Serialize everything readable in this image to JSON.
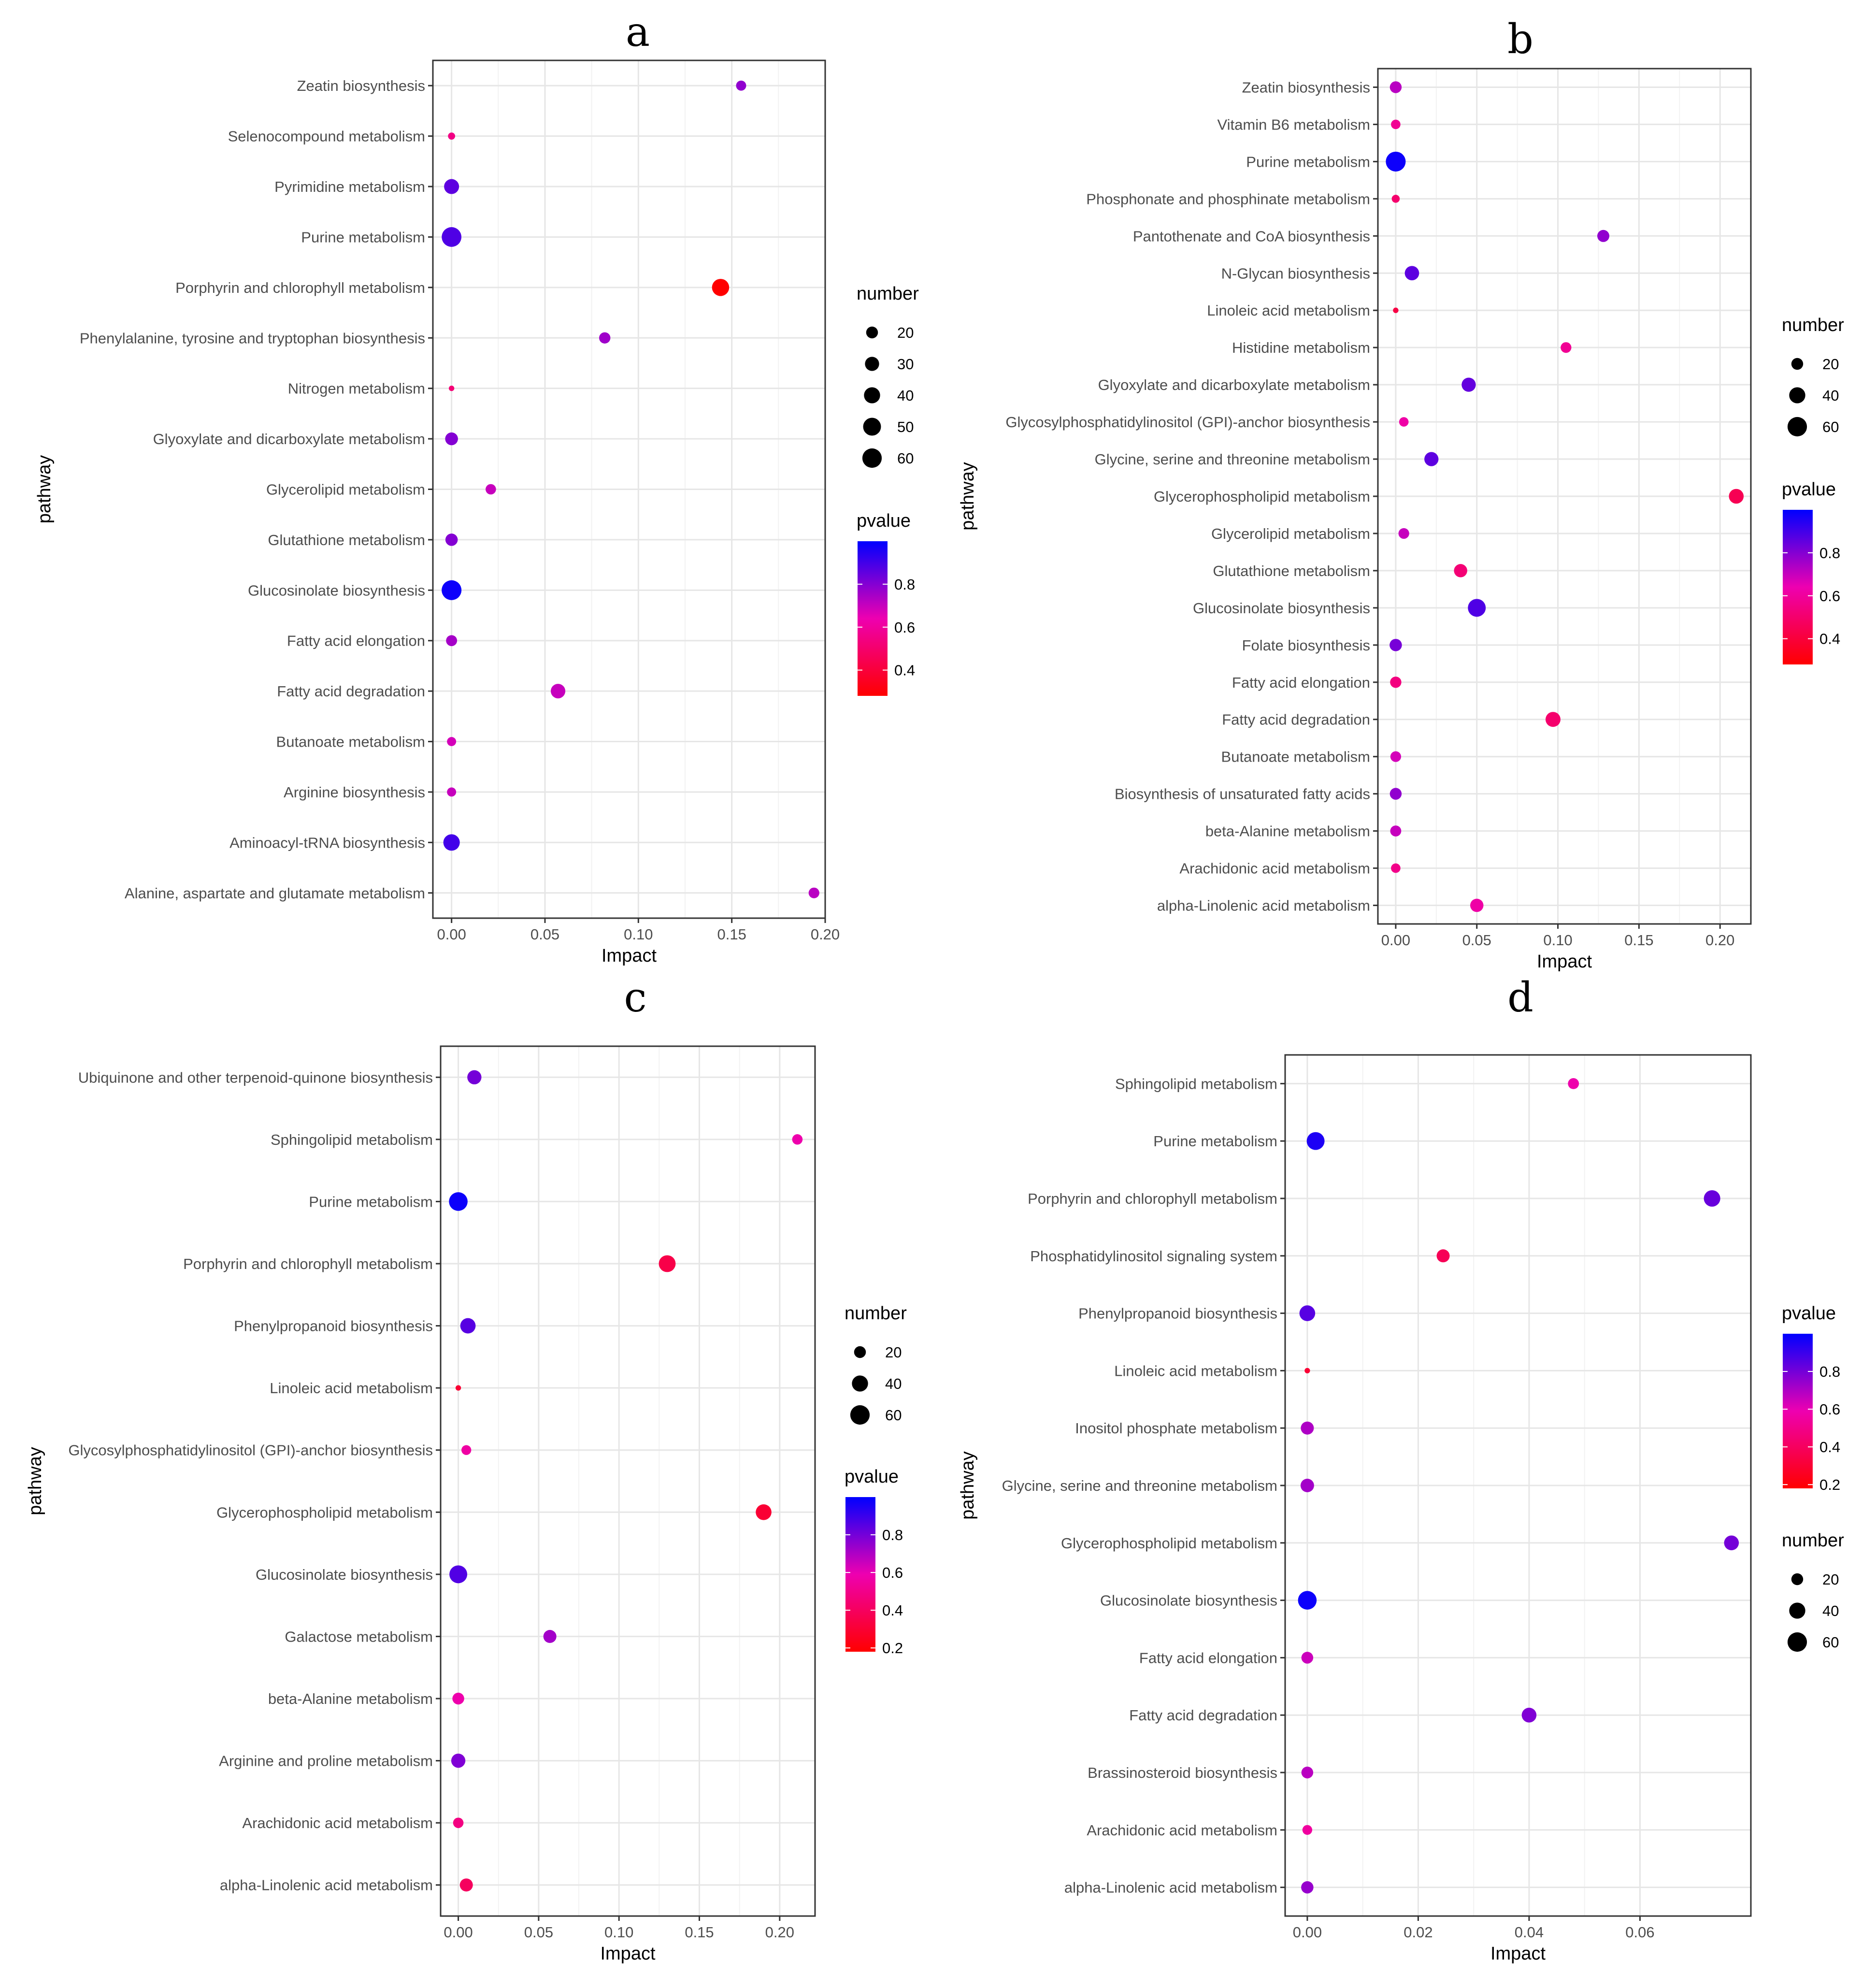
{
  "chart_data": [
    {
      "type": "scatter",
      "panel_label": "a",
      "title": "",
      "xlabel": "Impact",
      "ylabel": "pathway",
      "xlim": [
        -0.01,
        0.2
      ],
      "xticks": [
        0.0,
        0.05,
        0.1,
        0.15,
        0.2
      ],
      "xtick_labels": [
        "0.00",
        "0.05",
        "0.10",
        "0.15",
        "0.20"
      ],
      "size_legend": {
        "title": "number",
        "values": [
          20,
          30,
          40,
          50,
          60
        ],
        "labels": [
          "20",
          "30",
          "40",
          "50",
          "60"
        ]
      },
      "color_legend": {
        "title": "pvalue",
        "range": [
          0.28,
          1.0
        ],
        "ticks": [
          0.4,
          0.6,
          0.8
        ],
        "labels": [
          "0.4",
          "0.6",
          "0.8"
        ]
      },
      "legend_order": [
        "number",
        "pvalue"
      ],
      "points": [
        {
          "pathway": "Zeatin biosynthesis",
          "impact": 0.155,
          "number": 14,
          "pvalue": 0.78
        },
        {
          "pathway": "Selenocompound metabolism",
          "impact": 0.0,
          "number": 6,
          "pvalue": 0.55
        },
        {
          "pathway": "Pyrimidine metabolism",
          "impact": 0.0,
          "number": 34,
          "pvalue": 0.86
        },
        {
          "pathway": "Purine metabolism",
          "impact": 0.0,
          "number": 62,
          "pvalue": 0.88
        },
        {
          "pathway": "Porphyrin and chlorophyll metabolism",
          "impact": 0.144,
          "number": 46,
          "pvalue": 0.28
        },
        {
          "pathway": "Phenylalanine, tyrosine and tryptophan biosynthesis",
          "impact": 0.082,
          "number": 18,
          "pvalue": 0.76
        },
        {
          "pathway": "Nitrogen metabolism",
          "impact": 0.0,
          "number": 3,
          "pvalue": 0.52
        },
        {
          "pathway": "Glyoxylate and dicarboxylate metabolism",
          "impact": 0.0,
          "number": 24,
          "pvalue": 0.8
        },
        {
          "pathway": "Glycerolipid metabolism",
          "impact": 0.021,
          "number": 15,
          "pvalue": 0.7
        },
        {
          "pathway": "Glutathione metabolism",
          "impact": 0.0,
          "number": 22,
          "pvalue": 0.8
        },
        {
          "pathway": "Glucosinolate biosynthesis",
          "impact": 0.0,
          "number": 63,
          "pvalue": 0.98
        },
        {
          "pathway": "Fatty acid elongation",
          "impact": 0.0,
          "number": 17,
          "pvalue": 0.75
        },
        {
          "pathway": "Fatty acid degradation",
          "impact": 0.057,
          "number": 32,
          "pvalue": 0.7
        },
        {
          "pathway": "Butanoate metabolism",
          "impact": 0.0,
          "number": 11,
          "pvalue": 0.68
        },
        {
          "pathway": "Arginine biosynthesis",
          "impact": 0.0,
          "number": 11,
          "pvalue": 0.7
        },
        {
          "pathway": "Aminoacyl-tRNA biosynthesis",
          "impact": 0.0,
          "number": 42,
          "pvalue": 0.9
        },
        {
          "pathway": "Alanine, aspartate and glutamate metabolism",
          "impact": 0.194,
          "number": 16,
          "pvalue": 0.72
        }
      ]
    },
    {
      "type": "scatter",
      "panel_label": "b",
      "title": "",
      "xlabel": "Impact",
      "ylabel": "pathway",
      "xlim": [
        -0.011,
        0.219
      ],
      "xticks": [
        0.0,
        0.05,
        0.1,
        0.15,
        0.2
      ],
      "xtick_labels": [
        "0.00",
        "0.05",
        "0.10",
        "0.15",
        "0.20"
      ],
      "size_legend": {
        "title": "number",
        "values": [
          20,
          40,
          60
        ],
        "labels": [
          "20",
          "40",
          "60"
        ]
      },
      "color_legend": {
        "title": "pvalue",
        "range": [
          0.28,
          1.0
        ],
        "ticks": [
          0.4,
          0.6,
          0.8
        ],
        "labels": [
          "0.4",
          "0.6",
          "0.8"
        ]
      },
      "legend_order": [
        "number",
        "pvalue"
      ],
      "points": [
        {
          "pathway": "Zeatin biosynthesis",
          "impact": 0.0,
          "number": 20,
          "pvalue": 0.72
        },
        {
          "pathway": "Vitamin B6 metabolism",
          "impact": 0.0,
          "number": 12,
          "pvalue": 0.58
        },
        {
          "pathway": "Purine metabolism",
          "impact": 0.0,
          "number": 63,
          "pvalue": 0.98
        },
        {
          "pathway": "Phosphonate and phosphinate metabolism",
          "impact": 0.0,
          "number": 8,
          "pvalue": 0.5
        },
        {
          "pathway": "Pantothenate and CoA biosynthesis",
          "impact": 0.128,
          "number": 21,
          "pvalue": 0.78
        },
        {
          "pathway": "N-Glycan biosynthesis",
          "impact": 0.01,
          "number": 31,
          "pvalue": 0.86
        },
        {
          "pathway": "Linoleic acid metabolism",
          "impact": 0.0,
          "number": 3,
          "pvalue": 0.42
        },
        {
          "pathway": "Histidine metabolism",
          "impact": 0.105,
          "number": 16,
          "pvalue": 0.58
        },
        {
          "pathway": "Glyoxylate and dicarboxylate metabolism",
          "impact": 0.045,
          "number": 30,
          "pvalue": 0.85
        },
        {
          "pathway": "Glycosylphosphatidylinositol (GPI)-anchor biosynthesis",
          "impact": 0.005,
          "number": 12,
          "pvalue": 0.62
        },
        {
          "pathway": "Glycine, serine and threonine metabolism",
          "impact": 0.022,
          "number": 30,
          "pvalue": 0.86
        },
        {
          "pathway": "Glycerophospholipid metabolism",
          "impact": 0.21,
          "number": 33,
          "pvalue": 0.45
        },
        {
          "pathway": "Glycerolipid metabolism",
          "impact": 0.005,
          "number": 16,
          "pvalue": 0.7
        },
        {
          "pathway": "Glutathione metabolism",
          "impact": 0.04,
          "number": 26,
          "pvalue": 0.52
        },
        {
          "pathway": "Glucosinolate biosynthesis",
          "impact": 0.05,
          "number": 50,
          "pvalue": 0.88
        },
        {
          "pathway": "Folate biosynthesis",
          "impact": 0.0,
          "number": 22,
          "pvalue": 0.82
        },
        {
          "pathway": "Fatty acid elongation",
          "impact": 0.0,
          "number": 18,
          "pvalue": 0.54
        },
        {
          "pathway": "Fatty acid degradation",
          "impact": 0.097,
          "number": 34,
          "pvalue": 0.5
        },
        {
          "pathway": "Butanoate metabolism",
          "impact": 0.0,
          "number": 16,
          "pvalue": 0.68
        },
        {
          "pathway": "Biosynthesis of unsaturated fatty acids",
          "impact": 0.0,
          "number": 20,
          "pvalue": 0.78
        },
        {
          "pathway": "beta-Alanine metabolism",
          "impact": 0.0,
          "number": 17,
          "pvalue": 0.7
        },
        {
          "pathway": "Arachidonic acid metabolism",
          "impact": 0.0,
          "number": 12,
          "pvalue": 0.56
        },
        {
          "pathway": "alpha-Linolenic acid metabolism",
          "impact": 0.05,
          "number": 26,
          "pvalue": 0.62
        }
      ]
    },
    {
      "type": "scatter",
      "panel_label": "c",
      "title": "",
      "xlabel": "Impact",
      "ylabel": "pathway",
      "xlim": [
        -0.011,
        0.222
      ],
      "xticks": [
        0.0,
        0.05,
        0.1,
        0.15,
        0.2
      ],
      "xtick_labels": [
        "0.00",
        "0.05",
        "0.10",
        "0.15",
        "0.20"
      ],
      "size_legend": {
        "title": "number",
        "values": [
          20,
          40,
          60
        ],
        "labels": [
          "20",
          "40",
          "60"
        ]
      },
      "color_legend": {
        "title": "pvalue",
        "range": [
          0.18,
          1.0
        ],
        "ticks": [
          0.2,
          0.4,
          0.6,
          0.8
        ],
        "labels": [
          "0.2",
          "0.4",
          "0.6",
          "0.8"
        ]
      },
      "legend_order": [
        "number",
        "pvalue"
      ],
      "points": [
        {
          "pathway": "Ubiquinone and other terpenoid-quinone biosynthesis",
          "impact": 0.01,
          "number": 30,
          "pvalue": 0.8
        },
        {
          "pathway": "Sphingolipid metabolism",
          "impact": 0.211,
          "number": 15,
          "pvalue": 0.58
        },
        {
          "pathway": "Purine metabolism",
          "impact": 0.0,
          "number": 55,
          "pvalue": 0.98
        },
        {
          "pathway": "Porphyrin and chlorophyll metabolism",
          "impact": 0.13,
          "number": 44,
          "pvalue": 0.35
        },
        {
          "pathway": "Phenylpropanoid biosynthesis",
          "impact": 0.006,
          "number": 36,
          "pvalue": 0.85
        },
        {
          "pathway": "Linoleic acid metabolism",
          "impact": 0.0,
          "number": 3,
          "pvalue": 0.3
        },
        {
          "pathway": "Glycosylphosphatidylinositol (GPI)-anchor biosynthesis",
          "impact": 0.005,
          "number": 13,
          "pvalue": 0.56
        },
        {
          "pathway": "Glycerophospholipid metabolism",
          "impact": 0.19,
          "number": 38,
          "pvalue": 0.3
        },
        {
          "pathway": "Glucosinolate biosynthesis",
          "impact": 0.0,
          "number": 50,
          "pvalue": 0.86
        },
        {
          "pathway": "Galactose metabolism",
          "impact": 0.057,
          "number": 25,
          "pvalue": 0.72
        },
        {
          "pathway": "beta-Alanine metabolism",
          "impact": 0.0,
          "number": 20,
          "pvalue": 0.58
        },
        {
          "pathway": "Arginine and proline metabolism",
          "impact": 0.0,
          "number": 30,
          "pvalue": 0.78
        },
        {
          "pathway": "Arachidonic acid metabolism",
          "impact": 0.0,
          "number": 15,
          "pvalue": 0.48
        },
        {
          "pathway": "alpha-Linolenic acid metabolism",
          "impact": 0.005,
          "number": 25,
          "pvalue": 0.4
        }
      ]
    },
    {
      "type": "scatter",
      "panel_label": "d",
      "title": "",
      "xlabel": "Impact",
      "ylabel": "pathway",
      "xlim": [
        -0.004,
        0.08
      ],
      "xticks": [
        0.0,
        0.02,
        0.04,
        0.06
      ],
      "xtick_labels": [
        "0.00",
        "0.02",
        "0.04",
        "0.06"
      ],
      "size_legend": {
        "title": "number",
        "values": [
          20,
          40,
          60
        ],
        "labels": [
          "20",
          "40",
          "60"
        ]
      },
      "color_legend": {
        "title": "pvalue",
        "range": [
          0.18,
          1.0
        ],
        "ticks": [
          0.2,
          0.4,
          0.6,
          0.8
        ],
        "labels": [
          "0.2",
          "0.4",
          "0.6",
          "0.8"
        ]
      },
      "legend_order": [
        "pvalue",
        "number"
      ],
      "points": [
        {
          "pathway": "Sphingolipid metabolism",
          "impact": 0.048,
          "number": 17,
          "pvalue": 0.58
        },
        {
          "pathway": "Purine metabolism",
          "impact": 0.0015,
          "number": 50,
          "pvalue": 0.95
        },
        {
          "pathway": "Porphyrin and chlorophyll metabolism",
          "impact": 0.073,
          "number": 42,
          "pvalue": 0.82
        },
        {
          "pathway": "Phosphatidylinositol signaling system",
          "impact": 0.0245,
          "number": 25,
          "pvalue": 0.38
        },
        {
          "pathway": "Phenylpropanoid biosynthesis",
          "impact": 0.0,
          "number": 38,
          "pvalue": 0.85
        },
        {
          "pathway": "Linoleic acid metabolism",
          "impact": 0.0,
          "number": 3,
          "pvalue": 0.3
        },
        {
          "pathway": "Inositol phosphate metabolism",
          "impact": 0.0,
          "number": 25,
          "pvalue": 0.7
        },
        {
          "pathway": "Glycine, serine and threonine metabolism",
          "impact": 0.0,
          "number": 27,
          "pvalue": 0.72
        },
        {
          "pathway": "Glycerophospholipid metabolism",
          "impact": 0.0765,
          "number": 33,
          "pvalue": 0.8
        },
        {
          "pathway": "Glucosinolate biosynthesis",
          "impact": 0.0,
          "number": 55,
          "pvalue": 0.98
        },
        {
          "pathway": "Fatty acid elongation",
          "impact": 0.0,
          "number": 20,
          "pvalue": 0.65
        },
        {
          "pathway": "Fatty acid degradation",
          "impact": 0.04,
          "number": 33,
          "pvalue": 0.78
        },
        {
          "pathway": "Brassinosteroid biosynthesis",
          "impact": 0.0,
          "number": 20,
          "pvalue": 0.68
        },
        {
          "pathway": "Arachidonic acid metabolism",
          "impact": 0.0,
          "number": 13,
          "pvalue": 0.55
        },
        {
          "pathway": "alpha-Linolenic acid metabolism",
          "impact": 0.0,
          "number": 22,
          "pvalue": 0.74
        }
      ]
    }
  ]
}
